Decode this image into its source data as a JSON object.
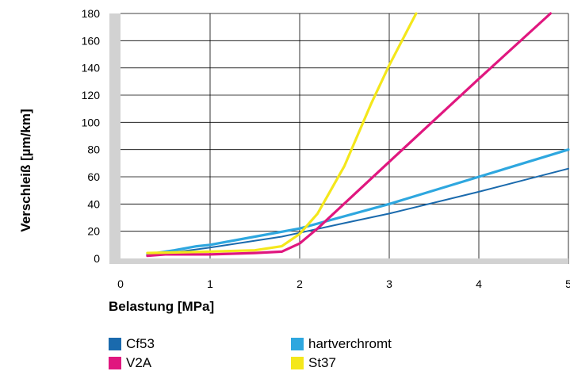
{
  "chart_data": {
    "type": "line",
    "xlabel": "Belastung [MPa]",
    "ylabel": "Verschleiß [µm/km]",
    "xlim": [
      0,
      5
    ],
    "ylim": [
      -10,
      180
    ],
    "xticks": [
      "0",
      "1",
      "2",
      "3",
      "4",
      "5"
    ],
    "yticks": [
      "0",
      "20",
      "40",
      "60",
      "80",
      "100",
      "120",
      "140",
      "160",
      "180"
    ],
    "grid": true,
    "legend_position": "bottom",
    "series": [
      {
        "name": "Cf53",
        "color": "#1a6aad",
        "points": [
          [
            0.3,
            2
          ],
          [
            1.0,
            8
          ],
          [
            1.8,
            16
          ],
          [
            2.5,
            26
          ],
          [
            3.0,
            33
          ],
          [
            4.0,
            49
          ],
          [
            5.0,
            66
          ]
        ]
      },
      {
        "name": "V2A",
        "color": "#e0177f",
        "points": [
          [
            0.3,
            2
          ],
          [
            0.5,
            3
          ],
          [
            1.0,
            3
          ],
          [
            1.5,
            4
          ],
          [
            1.8,
            5
          ],
          [
            2.0,
            11
          ],
          [
            2.2,
            22
          ],
          [
            3.0,
            71
          ],
          [
            4.0,
            132
          ],
          [
            4.8,
            180
          ]
        ]
      },
      {
        "name": "hartverchromt",
        "color": "#2ea7df",
        "points": [
          [
            0.3,
            3
          ],
          [
            0.6,
            6
          ],
          [
            0.85,
            9
          ],
          [
            1.0,
            10
          ],
          [
            1.5,
            16
          ],
          [
            2.0,
            22
          ],
          [
            3.0,
            40
          ],
          [
            4.0,
            60
          ],
          [
            5.0,
            80
          ]
        ]
      },
      {
        "name": "St37",
        "color": "#f4e71b",
        "points": [
          [
            0.3,
            4
          ],
          [
            1.0,
            5
          ],
          [
            1.5,
            6
          ],
          [
            1.8,
            9
          ],
          [
            2.0,
            18
          ],
          [
            2.2,
            33
          ],
          [
            2.5,
            68
          ],
          [
            2.8,
            114
          ],
          [
            3.0,
            142
          ],
          [
            3.3,
            180
          ]
        ]
      }
    ],
    "legend_order": [
      "Cf53",
      "hartverchromt",
      "V2A",
      "St37"
    ]
  }
}
